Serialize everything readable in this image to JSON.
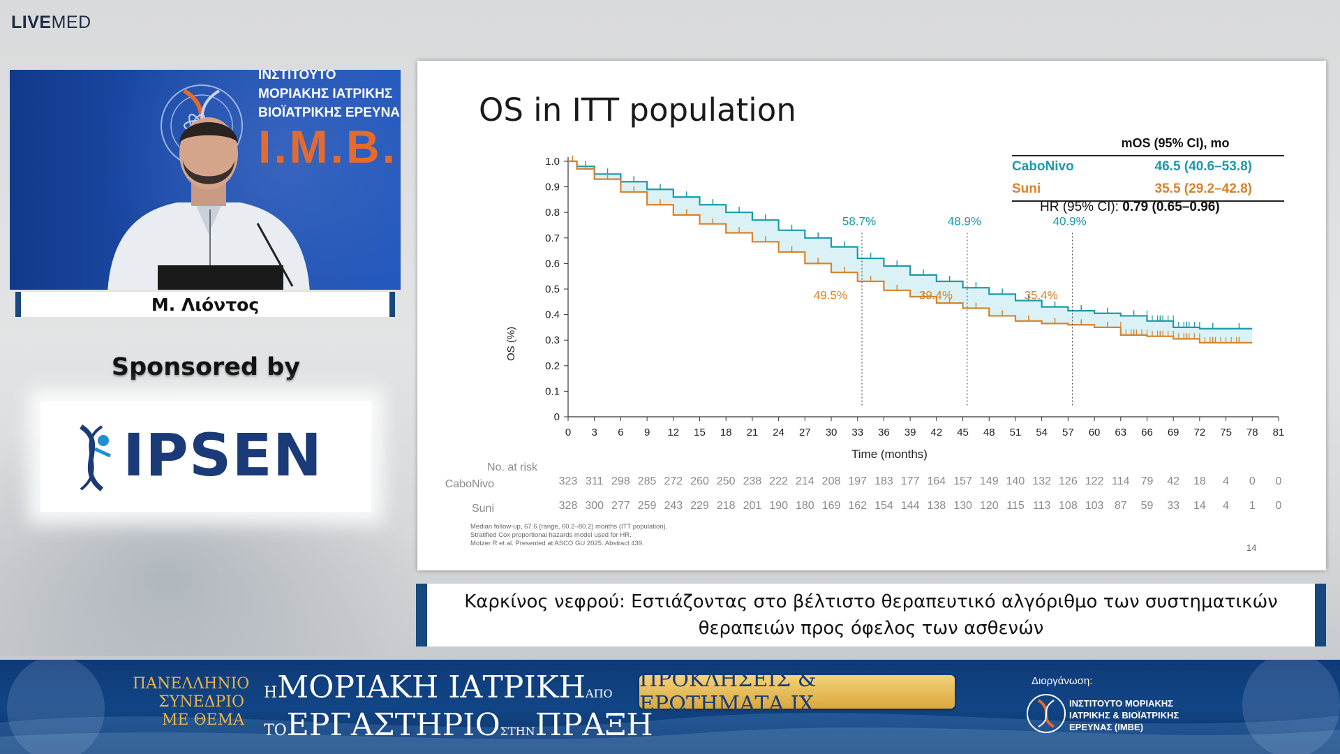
{
  "brand": {
    "bold": "LIVE",
    "rest": "MED"
  },
  "camera": {
    "backdrop_lines": [
      "ΙΝΣΤΙΤΟΥΤΟ",
      "ΜΟΡΙΑΚΗΣ ΙΑΤΡΙΚΗΣ",
      "ΒΙΟΪΑΤΡΙΚΗΣ ΕΡΕΥΝΑ"
    ],
    "backdrop_abbr": "I.M.B.E",
    "speaker_name": "Μ. Λιόντος"
  },
  "sponsor": {
    "label": "Sponsored by",
    "name": "IPSEN"
  },
  "slide": {
    "title": "OS in ITT population",
    "legend": {
      "header": "mOS (95% CI), mo",
      "rows": [
        {
          "name": "CaboNivo",
          "value": "46.5 (40.6–53.8)",
          "color": "#1a9aaa"
        },
        {
          "name": "Suni",
          "value": "35.5 (29.2–42.8)",
          "color": "#d9822b"
        }
      ],
      "hr_label": "HR (95% CI):",
      "hr_value": "0.79 (0.65–0.96)"
    },
    "ylabel": "OS (%)",
    "xlabel": "Time (months)",
    "at_risk": {
      "title": "No. at risk",
      "rows": [
        {
          "name": "CaboNivo",
          "values": [
            323,
            311,
            298,
            285,
            272,
            260,
            250,
            238,
            222,
            214,
            208,
            197,
            183,
            177,
            164,
            157,
            149,
            140,
            132,
            126,
            122,
            114,
            79,
            42,
            18,
            4,
            0,
            0
          ]
        },
        {
          "name": "Suni",
          "values": [
            328,
            300,
            277,
            259,
            243,
            229,
            218,
            201,
            190,
            180,
            169,
            162,
            154,
            144,
            138,
            130,
            120,
            115,
            113,
            108,
            103,
            87,
            59,
            33,
            14,
            4,
            1,
            0
          ]
        }
      ]
    },
    "footnote": "Median follow-up, 67.6 (range, 60.2–80.2) months (ITT population).\nStratified Cox proportional hazards model used for HR.\nMotzer R et al. Presented at ASCO GU 2025. Abstract 439.",
    "page_number": "14"
  },
  "chart_data": {
    "type": "line",
    "title": "OS in ITT population",
    "xlabel": "Time (months)",
    "ylabel": "OS (%)",
    "xlim": [
      0,
      81
    ],
    "ylim": [
      0,
      1.0
    ],
    "x_ticks": [
      0,
      3,
      6,
      9,
      12,
      15,
      18,
      21,
      24,
      27,
      30,
      33,
      36,
      39,
      42,
      45,
      48,
      51,
      54,
      57,
      60,
      63,
      66,
      69,
      72,
      75,
      78,
      81
    ],
    "y_ticks": [
      0,
      0.1,
      0.2,
      0.3,
      0.4,
      0.5,
      0.6,
      0.7,
      0.8,
      0.9,
      1.0
    ],
    "series": [
      {
        "name": "CaboNivo",
        "color": "#1a9aaa",
        "x": [
          0,
          1,
          3,
          6,
          9,
          12,
          15,
          18,
          21,
          24,
          27,
          30,
          33,
          36,
          39,
          42,
          45,
          48,
          51,
          54,
          57,
          60,
          63,
          66,
          69,
          72,
          75,
          78
        ],
        "y": [
          1.0,
          0.98,
          0.95,
          0.92,
          0.89,
          0.86,
          0.83,
          0.8,
          0.77,
          0.73,
          0.7,
          0.665,
          0.62,
          0.59,
          0.555,
          0.53,
          0.505,
          0.48,
          0.455,
          0.43,
          0.415,
          0.405,
          0.395,
          0.375,
          0.35,
          0.345,
          0.345,
          0.345
        ]
      },
      {
        "name": "Suni",
        "color": "#d9822b",
        "x": [
          0,
          1,
          3,
          6,
          9,
          12,
          15,
          18,
          21,
          24,
          27,
          30,
          33,
          36,
          39,
          42,
          45,
          48,
          51,
          54,
          57,
          60,
          63,
          66,
          69,
          72,
          75,
          78
        ],
        "y": [
          1.0,
          0.97,
          0.93,
          0.88,
          0.83,
          0.79,
          0.755,
          0.72,
          0.685,
          0.645,
          0.6,
          0.565,
          0.53,
          0.495,
          0.47,
          0.445,
          0.425,
          0.395,
          0.375,
          0.365,
          0.36,
          0.35,
          0.32,
          0.315,
          0.305,
          0.29,
          0.29,
          0.29
        ]
      }
    ],
    "annotations": [
      {
        "x": 33.5,
        "top": "58.7%",
        "bottom": "49.5%"
      },
      {
        "x": 45.5,
        "top": "48.9%",
        "bottom": "39.4%"
      },
      {
        "x": 57.5,
        "top": "40.9%",
        "bottom": "35.4%"
      }
    ]
  },
  "topic": {
    "line1": "Καρκίνος νεφρού: Εστιάζοντας στο βέλτιστο θεραπευτικό αλγόριθμο των συστηματικών",
    "line2": "θεραπειών προς όφελος των ασθενών"
  },
  "banner": {
    "left": [
      "ΠΑΝΕΛΛΗΝΙΟ",
      "ΣΥΝΕΔΡΙΟ",
      "ΜΕ ΘΕΜΑ"
    ],
    "mid1_prefix": "Η",
    "mid1_main": "ΜΟΡΙΑΚΗ ΙΑΤΡΙΚΗ",
    "mid1_suffix": "ΑΠΟ",
    "mid2_prefix": "ΤΟ",
    "mid2_main": "ΕΡΓΑΣΤΗΡΙΟ",
    "mid2_conn": "ΣΤΗΝ",
    "mid2_end": "ΠΡΑΞΗ",
    "pill": "ΠΡΟΚΛΗΣΕΙΣ & ΕΡΩΤΗΜΑΤΑ IX",
    "org_label": "Διοργάνωση:",
    "org_lines": [
      "ΙΝΣΤΙΤΟΥΤΟ ΜΟΡΙΑΚΗΣ",
      "ΙΑΤΡΙΚΗΣ & ΒΙΟΪΑΤΡΙΚΗΣ",
      "ΕΡΕΥΝΑΣ (IMBE)"
    ]
  }
}
